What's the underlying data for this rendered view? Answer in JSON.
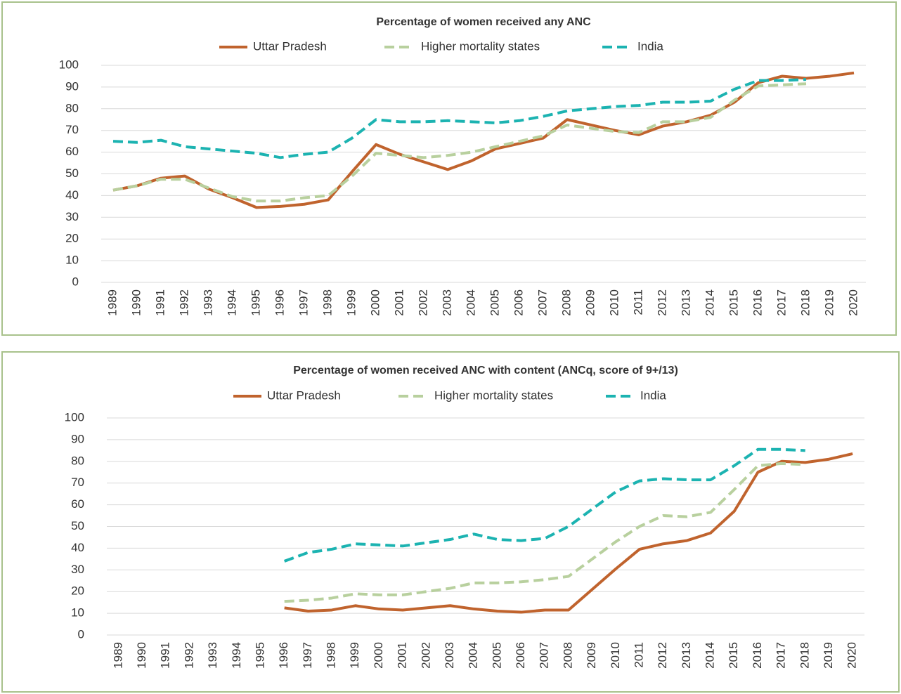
{
  "chart_data": [
    {
      "type": "line",
      "title": "Percentage of women received any ANC",
      "categories": [
        "1989",
        "1990",
        "1991",
        "1992",
        "1993",
        "1994",
        "1995",
        "1996",
        "1997",
        "1998",
        "1999",
        "2000",
        "2001",
        "2002",
        "2003",
        "2004",
        "2005",
        "2006",
        "2007",
        "2008",
        "2009",
        "2010",
        "2011",
        "2012",
        "2013",
        "2014",
        "2015",
        "2016",
        "2017",
        "2018",
        "2019",
        "2020"
      ],
      "series": [
        {
          "name": "Uttar Pradesh",
          "color": "#c0632d",
          "dash": false,
          "values": [
            42.5,
            44.5,
            48,
            49,
            43,
            39,
            34.5,
            35,
            36,
            38,
            51,
            63.5,
            59,
            55.5,
            52,
            56,
            61.5,
            64,
            66.5,
            75,
            72.5,
            70,
            68,
            72,
            74,
            77,
            83,
            92,
            95,
            94,
            95,
            96.5
          ]
        },
        {
          "name": "Higher mortality states",
          "color": "#b8d09e",
          "dash": true,
          "values": [
            42.5,
            44.5,
            47.5,
            47.5,
            43.5,
            39.5,
            37.5,
            37.5,
            39,
            40,
            49,
            59.5,
            58.5,
            57.5,
            58.5,
            60,
            62.5,
            65,
            67.5,
            72.5,
            71,
            69.5,
            69,
            74,
            74,
            76,
            84,
            90.5,
            91,
            91.5,
            null,
            null
          ]
        },
        {
          "name": "India",
          "color": "#1cb3b1",
          "dash": true,
          "values": [
            65,
            64.5,
            65.5,
            62.5,
            61.5,
            60.5,
            59.5,
            57.5,
            59,
            60,
            66.5,
            75,
            74,
            74,
            74.5,
            74,
            73.5,
            74.5,
            76.5,
            79,
            80,
            81,
            81.5,
            83,
            83,
            83.5,
            89,
            93,
            93,
            93.5,
            null,
            null
          ]
        }
      ],
      "ylim": [
        0,
        100
      ],
      "yticks": [
        0,
        10,
        20,
        30,
        40,
        50,
        60,
        70,
        80,
        90,
        100
      ],
      "grid": true,
      "legend": "top"
    },
    {
      "type": "line",
      "title": "Percentage of women received ANC with content (ANCq, score of 9+/13)",
      "categories": [
        "1989",
        "1990",
        "1991",
        "1992",
        "1993",
        "1994",
        "1995",
        "1996",
        "1997",
        "1998",
        "1999",
        "2000",
        "2001",
        "2002",
        "2003",
        "2004",
        "2005",
        "2006",
        "2007",
        "2008",
        "2009",
        "2010",
        "2011",
        "2012",
        "2013",
        "2014",
        "2015",
        "2016",
        "2017",
        "2018",
        "2019",
        "2020"
      ],
      "series": [
        {
          "name": "Uttar Pradesh",
          "color": "#c0632d",
          "dash": false,
          "values": [
            null,
            null,
            null,
            null,
            null,
            null,
            null,
            12.5,
            11,
            11.5,
            13.5,
            12,
            11.5,
            12.5,
            13.5,
            12,
            11,
            10.5,
            11.5,
            11.5,
            21,
            30.5,
            39.5,
            42,
            43.5,
            47,
            57,
            75,
            80,
            79.5,
            81,
            83.5
          ]
        },
        {
          "name": "Higher mortality states",
          "color": "#b8d09e",
          "dash": true,
          "values": [
            null,
            null,
            null,
            null,
            null,
            null,
            null,
            15.5,
            16,
            17,
            19,
            18.5,
            18.5,
            20,
            21.5,
            24,
            24,
            24.5,
            25.5,
            27,
            35,
            43,
            50,
            55,
            54.5,
            56.5,
            67,
            78,
            79,
            78.5,
            null,
            null
          ]
        },
        {
          "name": "India",
          "color": "#1cb3b1",
          "dash": true,
          "values": [
            null,
            null,
            null,
            null,
            null,
            null,
            null,
            34,
            38,
            39.5,
            42,
            41.5,
            41,
            42.5,
            44,
            46.5,
            44,
            43.5,
            44.5,
            50,
            58,
            66,
            71,
            72,
            71.5,
            71.5,
            78,
            85.5,
            85.5,
            85,
            null,
            null
          ]
        }
      ],
      "ylim": [
        0,
        100
      ],
      "yticks": [
        0,
        10,
        20,
        30,
        40,
        50,
        60,
        70,
        80,
        90,
        100
      ],
      "grid": true,
      "legend": "top"
    }
  ]
}
